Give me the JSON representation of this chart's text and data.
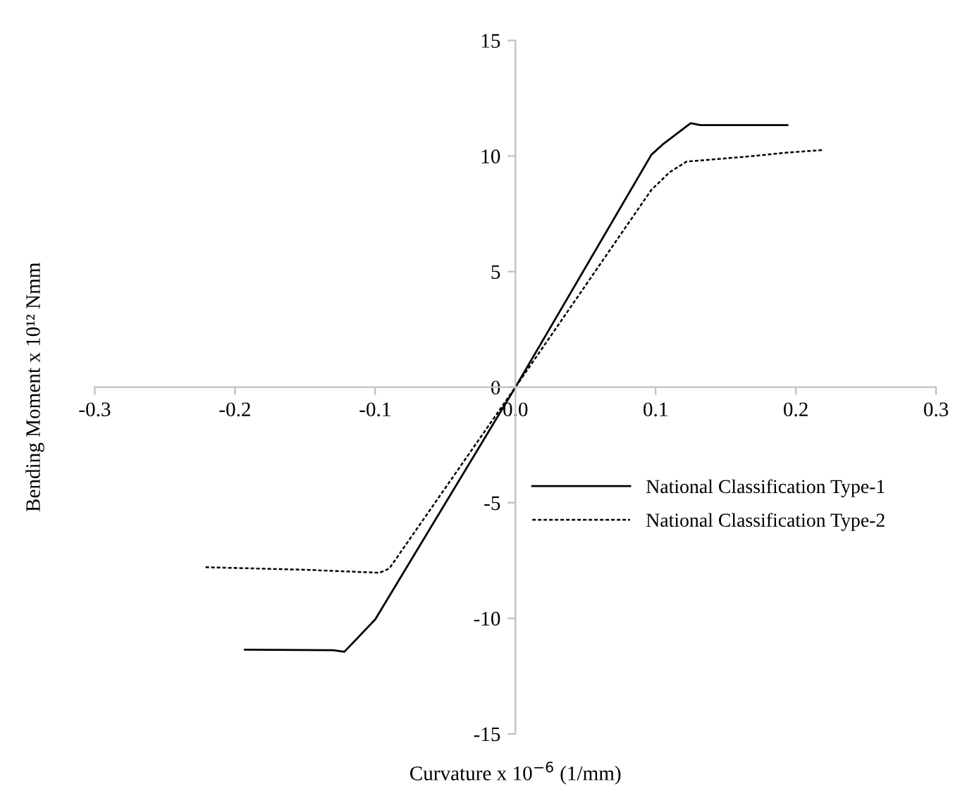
{
  "chart_data": {
    "type": "line",
    "xlabel": "Curvature x 10$^{−6}$ (1/mm)",
    "ylabel": "Bending Moment x 10¹² Nmm",
    "xlim": [
      -0.3,
      0.3
    ],
    "ylim": [
      -15,
      15
    ],
    "xticks": [
      -0.3,
      -0.2,
      -0.1,
      {
        "value": 0,
        "label": "0.0"
      },
      0.1,
      0.2,
      0.3
    ],
    "yticks": [
      -15,
      -10,
      -5,
      0,
      5,
      10,
      15
    ],
    "grid": false,
    "legend": "right",
    "marker": "none",
    "series": [
      {
        "name": "National Classification Type-1",
        "color": "#000000",
        "line_style": "solid",
        "x": [
          -0.193,
          -0.13,
          -0.122,
          -0.1,
          0.0,
          0.097,
          0.105,
          0.125,
          0.132,
          0.194
        ],
        "values": [
          -11.36,
          -11.38,
          -11.45,
          -10.05,
          0.0,
          10.06,
          10.5,
          11.42,
          11.34,
          11.34
        ]
      },
      {
        "name": "National Classification Type-2",
        "color": "#000000",
        "line_style": "dotted",
        "x": [
          -0.221,
          -0.15,
          -0.097,
          -0.09,
          0.0,
          0.097,
          0.11,
          0.122,
          0.16,
          0.196,
          0.219
        ],
        "values": [
          -7.79,
          -7.9,
          -8.03,
          -7.85,
          0.0,
          8.54,
          9.3,
          9.76,
          9.95,
          10.16,
          10.26
        ]
      }
    ]
  }
}
